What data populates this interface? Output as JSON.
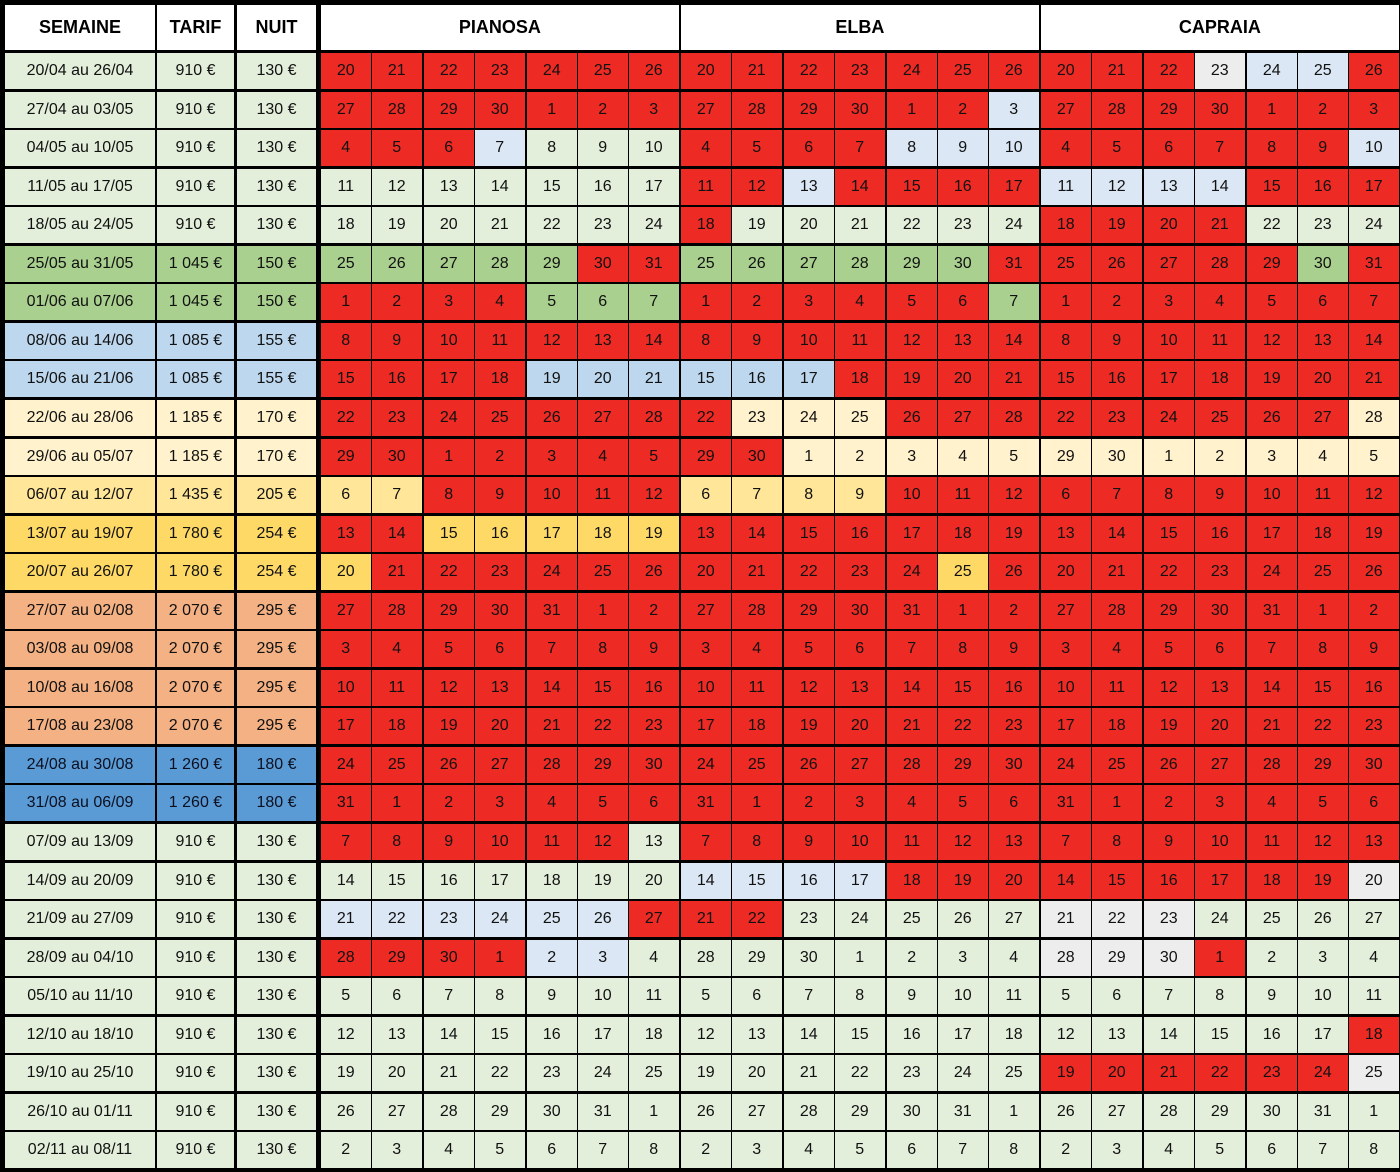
{
  "headers": {
    "semaine": "SEMAINE",
    "tarif": "TARIF",
    "nuit": "NUIT"
  },
  "colors": {
    "r": "#ee2a24",
    "g": "#e3efdb",
    "G": "#a9d08e",
    "b": "#dbe7f5",
    "B": "#bdd7ee",
    "y": "#fff2cc",
    "Y": "#ffe699",
    "o": "#ffd966",
    "p": "#f4b183",
    "d": "#5b9bd5",
    "w": "#ededed"
  },
  "weeks": [
    {
      "semaine": "20/04 au 26/04",
      "tarif": "910 €",
      "nuit": "130 €",
      "color": "g"
    },
    {
      "semaine": "27/04 au 03/05",
      "tarif": "910 €",
      "nuit": "130 €",
      "color": "g"
    },
    {
      "semaine": "04/05 au 10/05",
      "tarif": "910 €",
      "nuit": "130 €",
      "color": "g"
    },
    {
      "semaine": "11/05 au 17/05",
      "tarif": "910 €",
      "nuit": "130 €",
      "color": "g"
    },
    {
      "semaine": "18/05 au 24/05",
      "tarif": "910 €",
      "nuit": "130 €",
      "color": "g"
    },
    {
      "semaine": "25/05 au 31/05",
      "tarif": "1 045 €",
      "nuit": "150 €",
      "color": "G"
    },
    {
      "semaine": "01/06 au 07/06",
      "tarif": "1 045 €",
      "nuit": "150 €",
      "color": "G"
    },
    {
      "semaine": "08/06 au 14/06",
      "tarif": "1 085 €",
      "nuit": "155 €",
      "color": "B"
    },
    {
      "semaine": "15/06 au 21/06",
      "tarif": "1 085 €",
      "nuit": "155 €",
      "color": "B"
    },
    {
      "semaine": "22/06 au 28/06",
      "tarif": "1 185 €",
      "nuit": "170 €",
      "color": "y"
    },
    {
      "semaine": "29/06 au 05/07",
      "tarif": "1 185 €",
      "nuit": "170 €",
      "color": "y"
    },
    {
      "semaine": "06/07 au 12/07",
      "tarif": "1 435 €",
      "nuit": "205 €",
      "color": "Y"
    },
    {
      "semaine": "13/07 au 19/07",
      "tarif": "1 780 €",
      "nuit": "254 €",
      "color": "o"
    },
    {
      "semaine": "20/07 au 26/07",
      "tarif": "1 780 €",
      "nuit": "254 €",
      "color": "o"
    },
    {
      "semaine": "27/07 au 02/08",
      "tarif": "2 070 €",
      "nuit": "295 €",
      "color": "p"
    },
    {
      "semaine": "03/08 au 09/08",
      "tarif": "2 070 €",
      "nuit": "295 €",
      "color": "p"
    },
    {
      "semaine": "10/08 au 16/08",
      "tarif": "2 070 €",
      "nuit": "295 €",
      "color": "p"
    },
    {
      "semaine": "17/08 au 23/08",
      "tarif": "2 070 €",
      "nuit": "295 €",
      "color": "p"
    },
    {
      "semaine": "24/08 au 30/08",
      "tarif": "1 260 €",
      "nuit": "180 €",
      "color": "d"
    },
    {
      "semaine": "31/08 au 06/09",
      "tarif": "1 260 €",
      "nuit": "180 €",
      "color": "d"
    },
    {
      "semaine": "07/09 au 13/09",
      "tarif": "910 €",
      "nuit": "130 €",
      "color": "g"
    },
    {
      "semaine": "14/09 au 20/09",
      "tarif": "910 €",
      "nuit": "130 €",
      "color": "g"
    },
    {
      "semaine": "21/09 au 27/09",
      "tarif": "910 €",
      "nuit": "130 €",
      "color": "g"
    },
    {
      "semaine": "28/09 au 04/10",
      "tarif": "910 €",
      "nuit": "130 €",
      "color": "g"
    },
    {
      "semaine": "05/10 au 11/10",
      "tarif": "910 €",
      "nuit": "130 €",
      "color": "g"
    },
    {
      "semaine": "12/10 au 18/10",
      "tarif": "910 €",
      "nuit": "130 €",
      "color": "g"
    },
    {
      "semaine": "19/10 au 25/10",
      "tarif": "910 €",
      "nuit": "130 €",
      "color": "g"
    },
    {
      "semaine": "26/10 au 01/11",
      "tarif": "910 €",
      "nuit": "130 €",
      "color": "g"
    },
    {
      "semaine": "02/11 au 08/11",
      "tarif": "910 €",
      "nuit": "130 €",
      "color": "g"
    }
  ],
  "days": [
    [
      "20",
      "21",
      "22",
      "23",
      "24",
      "25",
      "26"
    ],
    [
      "27",
      "28",
      "29",
      "30",
      "1",
      "2",
      "3"
    ],
    [
      "4",
      "5",
      "6",
      "7",
      "8",
      "9",
      "10"
    ],
    [
      "11",
      "12",
      "13",
      "14",
      "15",
      "16",
      "17"
    ],
    [
      "18",
      "19",
      "20",
      "21",
      "22",
      "23",
      "24"
    ],
    [
      "25",
      "26",
      "27",
      "28",
      "29",
      "30",
      "31"
    ],
    [
      "1",
      "2",
      "3",
      "4",
      "5",
      "6",
      "7"
    ],
    [
      "8",
      "9",
      "10",
      "11",
      "12",
      "13",
      "14"
    ],
    [
      "15",
      "16",
      "17",
      "18",
      "19",
      "20",
      "21"
    ],
    [
      "22",
      "23",
      "24",
      "25",
      "26",
      "27",
      "28"
    ],
    [
      "29",
      "30",
      "1",
      "2",
      "3",
      "4",
      "5"
    ],
    [
      "6",
      "7",
      "8",
      "9",
      "10",
      "11",
      "12"
    ],
    [
      "13",
      "14",
      "15",
      "16",
      "17",
      "18",
      "19"
    ],
    [
      "20",
      "21",
      "22",
      "23",
      "24",
      "25",
      "26"
    ],
    [
      "27",
      "28",
      "29",
      "30",
      "31",
      "1",
      "2"
    ],
    [
      "3",
      "4",
      "5",
      "6",
      "7",
      "8",
      "9"
    ],
    [
      "10",
      "11",
      "12",
      "13",
      "14",
      "15",
      "16"
    ],
    [
      "17",
      "18",
      "19",
      "20",
      "21",
      "22",
      "23"
    ],
    [
      "24",
      "25",
      "26",
      "27",
      "28",
      "29",
      "30"
    ],
    [
      "31",
      "1",
      "2",
      "3",
      "4",
      "5",
      "6"
    ],
    [
      "7",
      "8",
      "9",
      "10",
      "11",
      "12",
      "13"
    ],
    [
      "14",
      "15",
      "16",
      "17",
      "18",
      "19",
      "20"
    ],
    [
      "21",
      "22",
      "23",
      "24",
      "25",
      "26",
      "27"
    ],
    [
      "28",
      "29",
      "30",
      "1",
      "2",
      "3",
      "4"
    ],
    [
      "5",
      "6",
      "7",
      "8",
      "9",
      "10",
      "11"
    ],
    [
      "12",
      "13",
      "14",
      "15",
      "16",
      "17",
      "18"
    ],
    [
      "19",
      "20",
      "21",
      "22",
      "23",
      "24",
      "25"
    ],
    [
      "26",
      "27",
      "28",
      "29",
      "30",
      "31",
      "1"
    ],
    [
      "2",
      "3",
      "4",
      "5",
      "6",
      "7",
      "8"
    ]
  ],
  "properties": [
    {
      "name": "PIANOSA",
      "status": [
        "rrrrrrr",
        "rrrrrrr",
        "rrrbggg",
        "ggggggg",
        "ggggggg",
        "GGGGGrr",
        "rrrrGGG",
        "rrrrrrr",
        "rrrrBBB",
        "rrrrrrr",
        "rrrrrrr",
        "YYrrrrr",
        "rrooooo",
        "orrrrrr",
        "rrrrrrr",
        "rrrrrrr",
        "rrrrrrr",
        "rrrrrrr",
        "rrrrrrr",
        "rrrrrrr",
        "rrrrrrg",
        "ggggggg",
        "bbbbbbr",
        "rrrrbbg",
        "ggggggg",
        "ggggggg",
        "ggggggg",
        "ggggggg",
        "ggggggg"
      ]
    },
    {
      "name": "ELBA",
      "status": [
        "rrrrrrr",
        "rrrrrrb",
        "rrrrbbb",
        "rrbrrrr",
        "rgggggg",
        "GGGGGGr",
        "rrrrrrG",
        "rrrrrrr",
        "BBBrrrr",
        "ryyyrrr",
        "rryyyyy",
        "YYYYrrr",
        "rrrrrrr",
        "rrrrror",
        "rrrrrrr",
        "rrrrrrr",
        "rrrrrrr",
        "rrrrrrr",
        "rrrrrrr",
        "rrrrrrr",
        "rrrrrrr",
        "bbbbrrr",
        "rrggggg",
        "ggggggg",
        "ggggggg",
        "ggggggg",
        "ggggggg",
        "ggggggg",
        "ggggggg"
      ]
    },
    {
      "name": "CAPRAIA",
      "status": [
        "rrrwbbr",
        "rrrrrrr",
        "rrrrrrb",
        "bbbbrrr",
        "rrrrggg",
        "rrrrrGr",
        "rrrrrrr",
        "rrrrrrr",
        "rrrrrrr",
        "rrrrrry",
        "yyyyyyy",
        "rrrrrrr",
        "rrrrrrr",
        "rrrrrrr",
        "rrrrrrr",
        "rrrrrrr",
        "rrrrrrr",
        "rrrrrrr",
        "rrrrrrr",
        "rrrrrrr",
        "rrrrrrr",
        "rrrrrrw",
        "wwwgggg",
        "wwwrggg",
        "ggggggg",
        "ggggggr",
        "rrrrrrw",
        "ggggggg",
        "ggggggg"
      ]
    }
  ]
}
